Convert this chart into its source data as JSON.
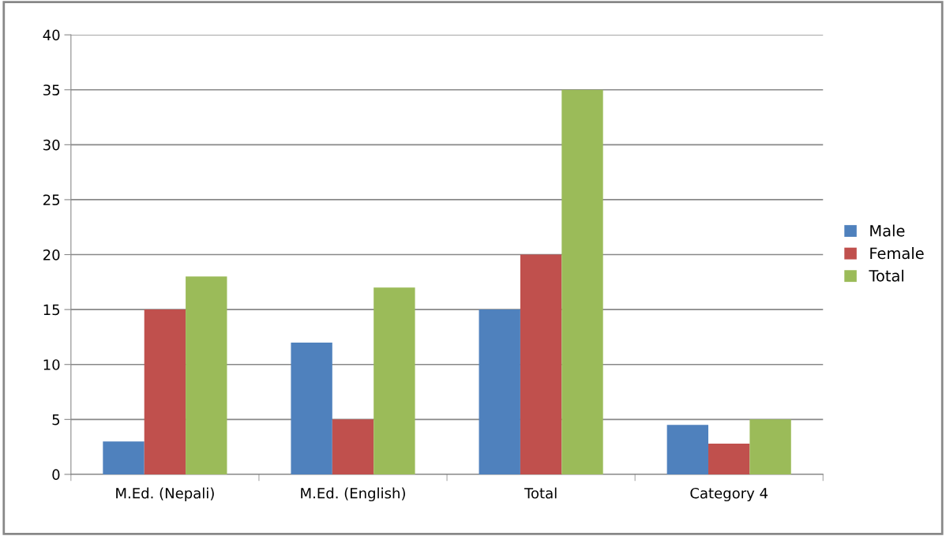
{
  "chart_data": {
    "type": "bar",
    "categories": [
      "M.Ed. (Nepali)",
      "M.Ed. (English)",
      "Total",
      "Category 4"
    ],
    "series": [
      {
        "name": "Male",
        "color": "#4f81bd",
        "values": [
          3,
          12,
          15,
          4.5
        ]
      },
      {
        "name": "Female",
        "color": "#c0504d",
        "values": [
          15,
          5,
          20,
          2.8
        ]
      },
      {
        "name": "Total",
        "color": "#9bbb59",
        "values": [
          18,
          17,
          35,
          5
        ]
      }
    ],
    "ylim": [
      0,
      40
    ],
    "yticks": [
      0,
      5,
      10,
      15,
      20,
      25,
      30,
      35,
      40
    ],
    "grid": "y",
    "legend": "right"
  }
}
